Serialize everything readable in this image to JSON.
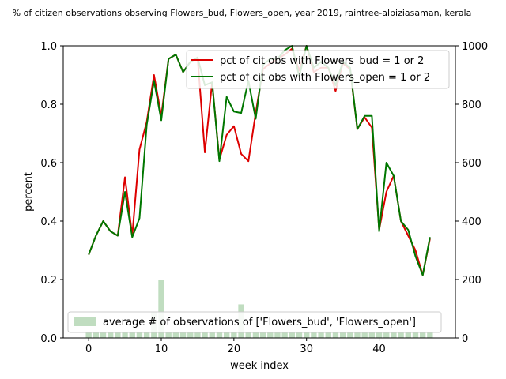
{
  "chart_data": {
    "type": "line",
    "title": "% of citizen observations observing Flowers_bud, Flowers_open, year 2019, raintree-albiziasaman, kerala",
    "xlabel": "week index",
    "ylabel": "percent",
    "xlim": [
      -3.5,
      50.5
    ],
    "ylim": [
      0,
      1.0
    ],
    "y2lim": [
      0,
      1000
    ],
    "x_ticks": [
      0,
      10,
      20,
      30,
      40
    ],
    "y_ticks": [
      0.0,
      0.2,
      0.4,
      0.6,
      0.8,
      1.0
    ],
    "y2_ticks": [
      0,
      200,
      400,
      600,
      800,
      1000
    ],
    "x_tick_labels": [
      "0",
      "10",
      "20",
      "30",
      "40"
    ],
    "y_tick_labels": [
      "0.0",
      "0.2",
      "0.4",
      "0.6",
      "0.8",
      "1.0"
    ],
    "y2_tick_labels": [
      "0",
      "200",
      "400",
      "600",
      "800",
      "1000"
    ],
    "x": [
      0,
      1,
      2,
      3,
      4,
      5,
      6,
      7,
      8,
      9,
      10,
      11,
      12,
      13,
      14,
      15,
      16,
      17,
      18,
      19,
      20,
      21,
      22,
      23,
      24,
      25,
      26,
      27,
      28,
      29,
      30,
      31,
      32,
      33,
      34,
      35,
      36,
      37,
      38,
      39,
      40,
      41,
      42,
      43,
      44,
      45,
      46,
      47
    ],
    "series": [
      {
        "name": "pct of cit obs with Flowers_bud = 1 or 2",
        "color": "#dd0000",
        "values": [
          0.285,
          0.35,
          0.4,
          0.365,
          0.35,
          0.55,
          0.35,
          0.645,
          0.74,
          0.9,
          0.76,
          0.955,
          0.97,
          0.91,
          0.945,
          0.96,
          0.635,
          0.875,
          0.61,
          0.695,
          0.725,
          0.63,
          0.605,
          0.77,
          0.92,
          0.94,
          0.955,
          0.97,
          0.99,
          0.915,
          1.0,
          0.91,
          0.925,
          0.925,
          0.845,
          0.94,
          0.92,
          0.715,
          0.755,
          0.72,
          0.37,
          0.5,
          0.555,
          0.4,
          0.35,
          0.3,
          0.215,
          0.34
        ]
      },
      {
        "name": "pct of cit obs with Flowers_open = 1 or 2",
        "color": "#007700",
        "values": [
          0.285,
          0.35,
          0.4,
          0.365,
          0.35,
          0.5,
          0.345,
          0.41,
          0.73,
          0.88,
          0.745,
          0.955,
          0.97,
          0.91,
          0.945,
          0.96,
          0.865,
          0.875,
          0.605,
          0.825,
          0.775,
          0.77,
          0.88,
          0.75,
          0.935,
          0.955,
          0.955,
          0.985,
          1.0,
          0.895,
          1.0,
          0.925,
          0.945,
          0.925,
          0.865,
          0.945,
          0.925,
          0.715,
          0.76,
          0.76,
          0.365,
          0.6,
          0.555,
          0.4,
          0.37,
          0.28,
          0.215,
          0.345
        ]
      }
    ],
    "bars": {
      "name": "average # of observations of ['Flowers_bud', 'Flowers_open']",
      "color": "#c0ddc0",
      "values": [
        20,
        20,
        20,
        20,
        20,
        20,
        20,
        20,
        20,
        90,
        200,
        20,
        20,
        20,
        20,
        20,
        20,
        20,
        20,
        20,
        20,
        115,
        20,
        20,
        20,
        20,
        20,
        20,
        20,
        20,
        20,
        20,
        20,
        20,
        20,
        20,
        20,
        20,
        20,
        20,
        20,
        20,
        20,
        20,
        20,
        20,
        20,
        20
      ]
    },
    "legend_top": "top-right",
    "legend_bottom": "lower-left",
    "grid": false
  }
}
